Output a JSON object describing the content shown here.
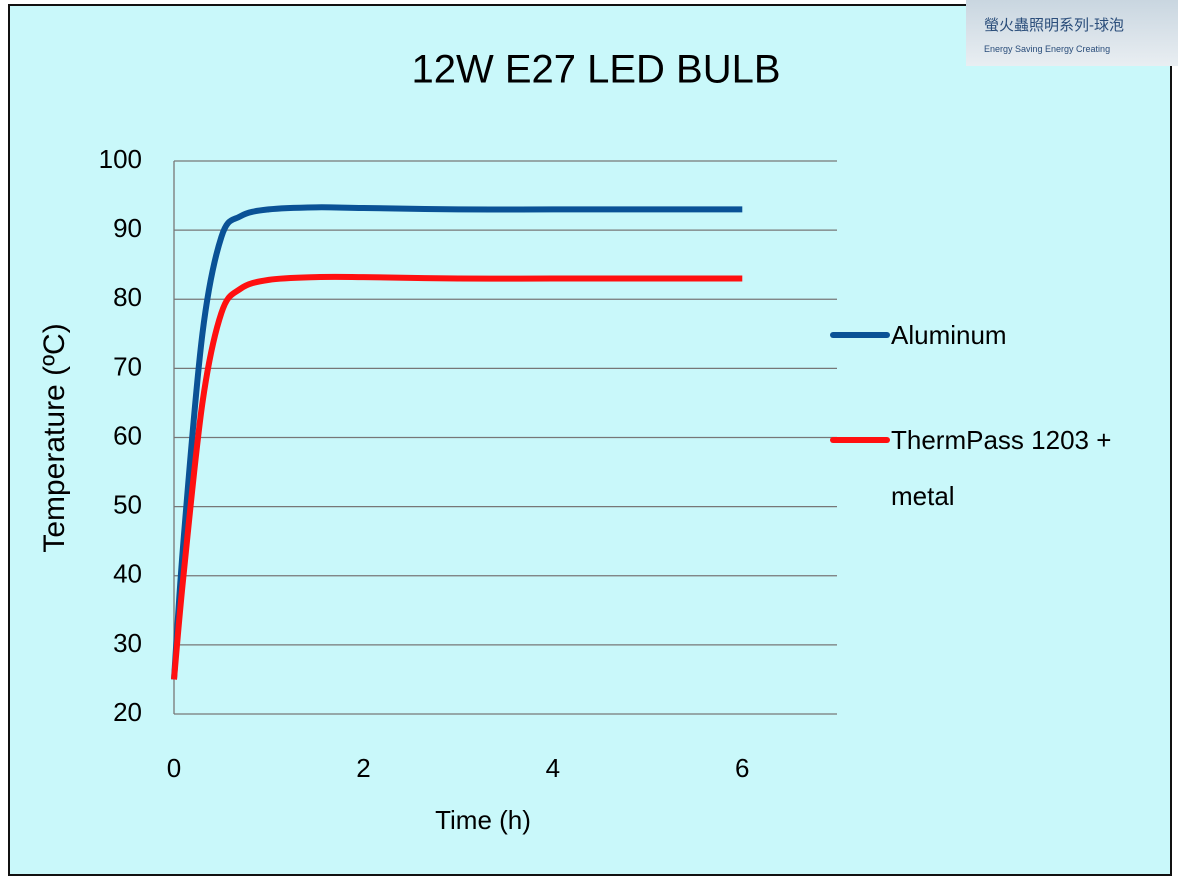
{
  "chart_data": {
    "type": "line",
    "title": "12W E27 LED BULB",
    "x_label": "Time (h)",
    "y_label": "Temperature (ºC)",
    "x": [
      0,
      0.1,
      0.3,
      0.5,
      0.7,
      1,
      1.5,
      2,
      3,
      4,
      5,
      6
    ],
    "series": [
      {
        "name": "Aluminum",
        "color": "#0a5296",
        "values": [
          25,
          45,
          75,
          89,
          92,
          93,
          93.3,
          93.2,
          93,
          93,
          93,
          93
        ]
      },
      {
        "name": "ThermPass 1203 + metal",
        "color": "#ff1010",
        "values": [
          25,
          40,
          65,
          78,
          81.5,
          82.8,
          83.2,
          83.2,
          83,
          83,
          83,
          83
        ]
      }
    ],
    "xlim": [
      0,
      7
    ],
    "xticks": [
      0,
      2,
      4,
      6
    ],
    "ylim": [
      20,
      100
    ],
    "yticks": [
      20,
      30,
      40,
      50,
      60,
      70,
      80,
      90,
      100
    ],
    "grid": true,
    "legend": "right"
  },
  "logo": {
    "line1": "螢火蟲照明系列-球泡",
    "line2": "Energy Saving Energy Creating"
  }
}
